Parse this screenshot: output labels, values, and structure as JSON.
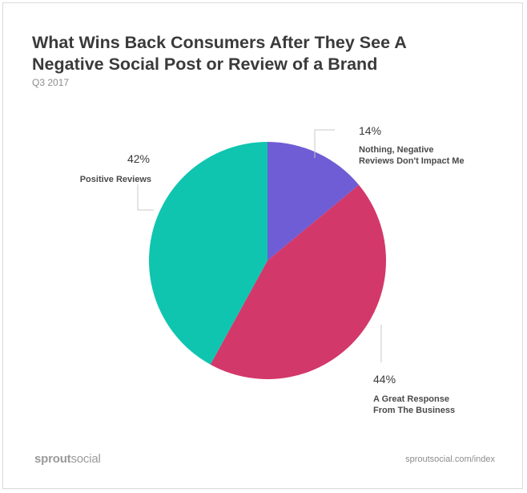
{
  "chart_data": {
    "type": "pie",
    "title": "What Wins Back Consumers After They See A Negative Social Post or Review of a Brand",
    "subtitle": "Q3 2017",
    "slices": [
      {
        "label": "Nothing, Negative Reviews Don't Impact Me",
        "label_lines": [
          "Nothing, Negative",
          "Reviews Don't Impact Me"
        ],
        "value": 14,
        "value_label": "14%",
        "color": "#6e5dd5"
      },
      {
        "label": "A Great Response From The Business",
        "label_lines": [
          "A Great Response",
          "From The Business"
        ],
        "value": 44,
        "value_label": "44%",
        "color": "#d3386a"
      },
      {
        "label": "Positive Reviews",
        "label_lines": [
          "Positive Reviews"
        ],
        "value": 42,
        "value_label": "42%",
        "color": "#0fc5b0"
      }
    ],
    "start_angle": "12 o'clock",
    "direction": "clockwise",
    "legend": "none"
  },
  "footer": {
    "brand_bold": "sprout",
    "brand_regular": "social",
    "url": "sproutsocial.com/index"
  }
}
